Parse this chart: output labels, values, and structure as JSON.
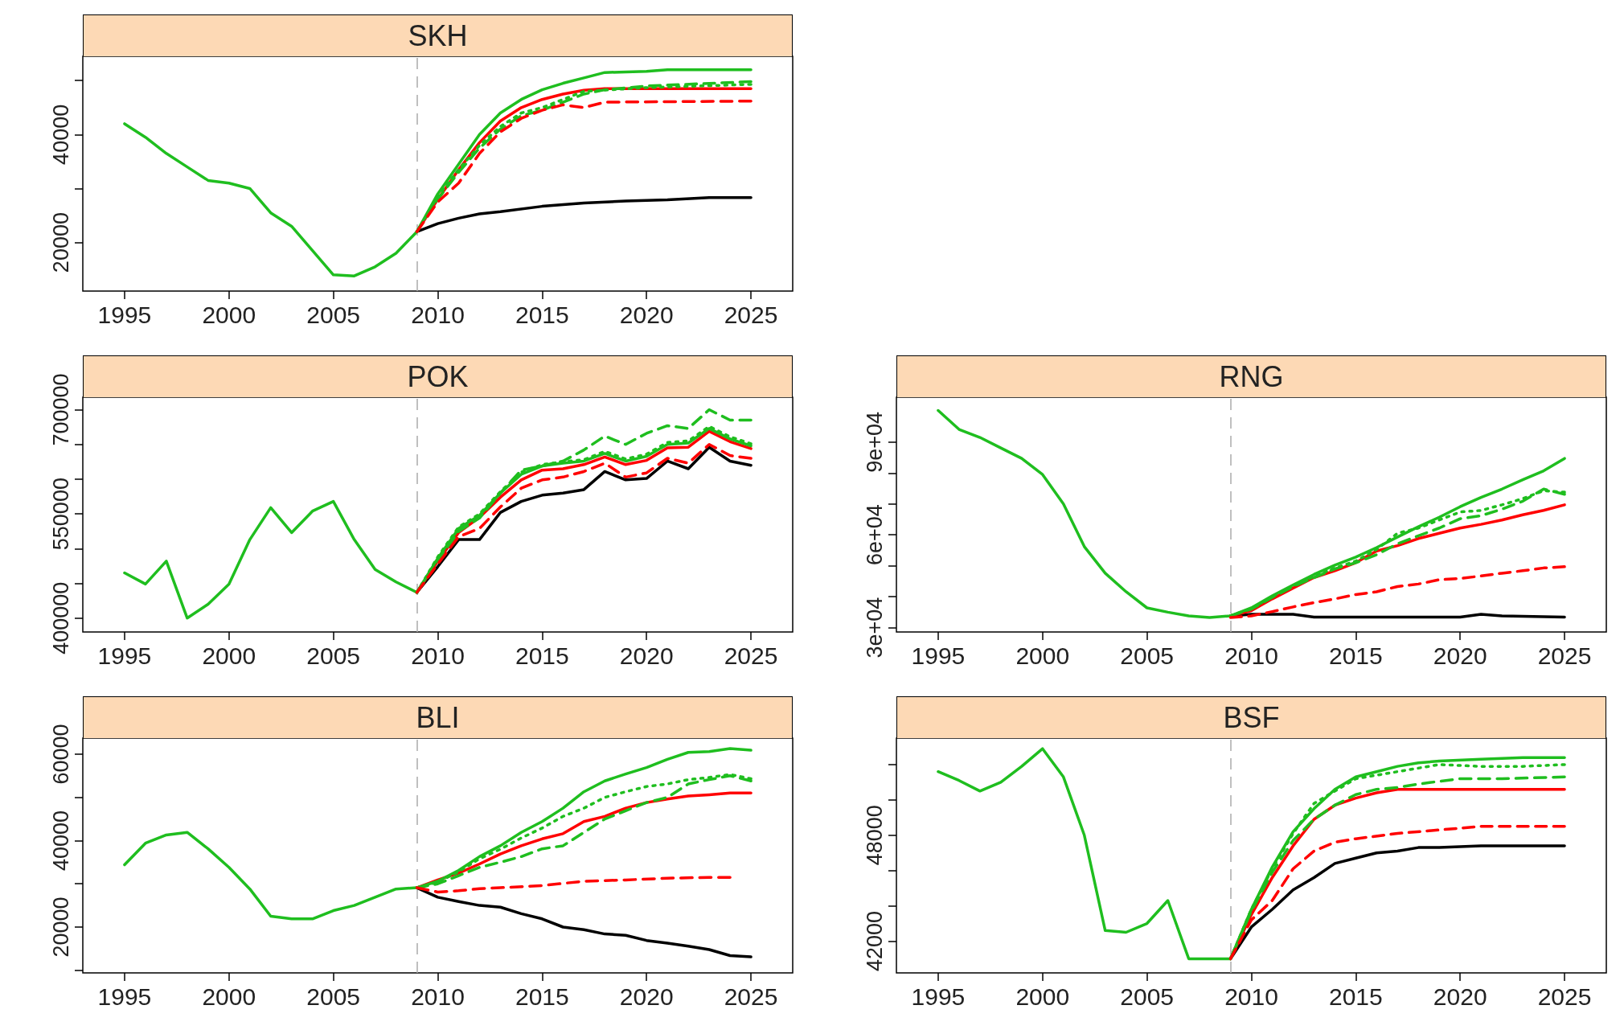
{
  "chart_data": [
    {
      "type": "line",
      "title": "SKH",
      "xlim": [
        1993,
        2027
      ],
      "xticks": [
        1995,
        2000,
        2005,
        2010,
        2015,
        2020,
        2025
      ],
      "ylim": [
        11000,
        54500
      ],
      "yticks": [
        20000,
        {
          "value": 30000,
          "label": null
        },
        40000,
        {
          "value": 50000,
          "label": null
        }
      ],
      "ref_lines": [
        {
          "axis": "x",
          "value": 2009,
          "color": "#aaaaaa",
          "line_style": "dashed"
        }
      ],
      "series": [
        {
          "color": "#000000",
          "line_style": "solid",
          "x": [
            2009,
            2010,
            2011,
            2012,
            2013,
            2015,
            2017,
            2019,
            2021,
            2023,
            2025
          ],
          "values": [
            22000,
            23500,
            24500,
            25300,
            25700,
            26700,
            27300,
            27700,
            27900,
            28300,
            28300
          ]
        },
        {
          "color": "#ff0000",
          "line_style": "dashed",
          "x": [
            2009,
            2010,
            2011,
            2012,
            2013,
            2014,
            2015,
            2016,
            2017,
            2018,
            2025
          ],
          "values": [
            22000,
            27500,
            31000,
            36500,
            40500,
            43000,
            44500,
            45500,
            45000,
            46000,
            46200
          ]
        },
        {
          "color": "#ff0000",
          "line_style": "solid",
          "x": [
            2009,
            2010,
            2011,
            2012,
            2013,
            2014,
            2015,
            2016,
            2017,
            2018,
            2025
          ],
          "values": [
            22000,
            28000,
            33500,
            38500,
            42500,
            45000,
            46500,
            47500,
            48200,
            48500,
            48500
          ]
        },
        {
          "color": "#1fbe1f",
          "line_style": "dashed",
          "x": [
            2009,
            2010,
            2011,
            2012,
            2013,
            2014,
            2015,
            2016,
            2017,
            2018,
            2020,
            2025
          ],
          "values": [
            22000,
            28000,
            33000,
            37500,
            41000,
            43500,
            44500,
            46000,
            47500,
            48300,
            49000,
            49800
          ]
        },
        {
          "color": "#1fbe1f",
          "line_style": "dotted",
          "x": [
            2009,
            2010,
            2011,
            2012,
            2013,
            2014,
            2015,
            2017,
            2020,
            2025
          ],
          "values": [
            22000,
            28500,
            33500,
            38000,
            41500,
            44000,
            45000,
            48000,
            48700,
            49300
          ]
        },
        {
          "color": "#1fbe1f",
          "line_style": "solid",
          "x": [
            1995,
            1996,
            1997,
            1998,
            1999,
            2000,
            2001,
            2002,
            2003,
            2004,
            2005,
            2006,
            2007,
            2008,
            2009,
            2010,
            2011,
            2012,
            2013,
            2014,
            2015,
            2016,
            2017,
            2018,
            2020,
            2021,
            2025
          ],
          "values": [
            42000,
            39500,
            36500,
            34000,
            31500,
            31000,
            30000,
            25500,
            23000,
            18500,
            14000,
            13800,
            15500,
            18000,
            22000,
            29000,
            34500,
            40000,
            44000,
            46500,
            48300,
            49500,
            50500,
            51500,
            51700,
            52000,
            52000
          ]
        }
      ]
    },
    {
      "type": "line",
      "title": "POK",
      "xlim": [
        1993,
        2027
      ],
      "xticks": [
        1995,
        2000,
        2005,
        2010,
        2015,
        2020,
        2025
      ],
      "ylim": [
        380000,
        718000
      ],
      "yticks": [
        400000,
        {
          "value": 450000,
          "label": null
        },
        {
          "value": 500000,
          "label": null
        },
        550000,
        {
          "value": 600000,
          "label": null
        },
        {
          "value": 650000,
          "label": null
        },
        700000
      ],
      "ref_lines": [
        {
          "axis": "x",
          "value": 2009,
          "color": "#aaaaaa",
          "line_style": "dashed"
        }
      ],
      "series": [
        {
          "color": "#000000",
          "line_style": "solid",
          "x": [
            2009,
            2010,
            2011,
            2012,
            2013,
            2014,
            2015,
            2016,
            2017,
            2018,
            2019,
            2020,
            2021,
            2022,
            2023,
            2024,
            2025
          ],
          "values": [
            437000,
            474000,
            513000,
            513000,
            552000,
            568000,
            577000,
            580000,
            585000,
            611000,
            599000,
            601000,
            626000,
            615000,
            646000,
            626000,
            620000
          ]
        },
        {
          "color": "#ff0000",
          "line_style": "dashed",
          "x": [
            2009,
            2010,
            2011,
            2012,
            2013,
            2014,
            2015,
            2016,
            2017,
            2018,
            2019,
            2020,
            2021,
            2022,
            2023,
            2024,
            2025
          ],
          "values": [
            437000,
            478000,
            517000,
            529000,
            560000,
            587000,
            599000,
            603000,
            611000,
            623000,
            603000,
            609000,
            630000,
            623000,
            650000,
            634000,
            630000
          ]
        },
        {
          "color": "#ff0000",
          "line_style": "solid",
          "x": [
            2009,
            2010,
            2011,
            2012,
            2013,
            2014,
            2015,
            2016,
            2017,
            2018,
            2019,
            2020,
            2021,
            2022,
            2023,
            2024,
            2025
          ],
          "values": [
            437000,
            482000,
            523000,
            545000,
            574000,
            599000,
            613000,
            615000,
            621000,
            632000,
            621000,
            627000,
            645000,
            646000,
            669000,
            654000,
            644000
          ]
        },
        {
          "color": "#1fbe1f",
          "line_style": "dashed",
          "x": [
            2009,
            2010,
            2011,
            2012,
            2013,
            2014,
            2015,
            2016,
            2017,
            2018,
            2019,
            2020,
            2021,
            2022,
            2023,
            2024,
            2025
          ],
          "values": [
            437000,
            482000,
            525000,
            544000,
            580000,
            613000,
            619000,
            626000,
            642000,
            662000,
            650000,
            666000,
            677000,
            673000,
            700000,
            685000,
            685000
          ]
        },
        {
          "color": "#1fbe1f",
          "line_style": "dotted",
          "x": [
            2009,
            2010,
            2011,
            2012,
            2013,
            2014,
            2015,
            2016,
            2017,
            2018,
            2019,
            2020,
            2021,
            2022,
            2023,
            2024,
            2025
          ],
          "values": [
            437000,
            488000,
            531000,
            550000,
            582000,
            610000,
            621000,
            625000,
            628000,
            640000,
            629000,
            636000,
            653000,
            655000,
            676000,
            661000,
            651000
          ]
        },
        {
          "color": "#1fbe1f",
          "line_style": "solid",
          "x": [
            1995,
            1996,
            1997,
            1998,
            1999,
            2000,
            2001,
            2002,
            2003,
            2004,
            2005,
            2006,
            2007,
            2008,
            2009,
            2010,
            2011,
            2012,
            2013,
            2014,
            2015,
            2016,
            2017,
            2018,
            2019,
            2020,
            2021,
            2022,
            2023,
            2024,
            2025
          ],
          "values": [
            465000,
            449000,
            482000,
            400000,
            420000,
            449000,
            513000,
            559000,
            523000,
            554000,
            568000,
            513000,
            470000,
            452000,
            437000,
            486000,
            529000,
            548000,
            580000,
            607000,
            619000,
            623000,
            626000,
            637000,
            626000,
            633000,
            650000,
            652000,
            673000,
            658000,
            648000
          ]
        }
      ]
    },
    {
      "type": "line",
      "title": "RNG",
      "xlim": [
        1993,
        2027
      ],
      "xticks": [
        1995,
        2000,
        2005,
        2010,
        2015,
        2020,
        2025
      ],
      "ylim": [
        28600,
        104500
      ],
      "yticks": [
        {
          "value": 30000,
          "label": "3e+04"
        },
        {
          "value": 40000,
          "label": null
        },
        {
          "value": 50000,
          "label": null
        },
        {
          "value": 60000,
          "label": "6e+04"
        },
        {
          "value": 70000,
          "label": null
        },
        {
          "value": 80000,
          "label": null
        },
        {
          "value": 90000,
          "label": "9e+04"
        }
      ],
      "ref_lines": [
        {
          "axis": "x",
          "value": 2009,
          "color": "#aaaaaa",
          "line_style": "dashed"
        }
      ],
      "series": [
        {
          "color": "#000000",
          "line_style": "solid",
          "x": [
            2009,
            2010,
            2012,
            2013,
            2020,
            2021,
            2022,
            2025
          ],
          "values": [
            33800,
            34300,
            34300,
            33400,
            33400,
            34300,
            33800,
            33400
          ]
        },
        {
          "color": "#ff0000",
          "line_style": "dashed",
          "x": [
            2009,
            2010,
            2011,
            2012,
            2013,
            2014,
            2015,
            2016,
            2017,
            2018,
            2019,
            2020,
            2021,
            2022,
            2023,
            2024,
            2025
          ],
          "values": [
            33300,
            33800,
            35200,
            36700,
            38100,
            39300,
            40700,
            41600,
            43300,
            44100,
            45500,
            45900,
            46700,
            47600,
            48400,
            49300,
            49700
          ]
        },
        {
          "color": "#ff0000",
          "line_style": "solid",
          "x": [
            2009,
            2010,
            2011,
            2012,
            2013,
            2014,
            2015,
            2016,
            2017,
            2018,
            2019,
            2020,
            2021,
            2022,
            2023,
            2024,
            2025
          ],
          "values": [
            33800,
            35500,
            39300,
            42800,
            46200,
            48400,
            51000,
            54800,
            56500,
            58800,
            60500,
            62200,
            63400,
            64800,
            66500,
            67900,
            69700
          ]
        },
        {
          "color": "#1fbe1f",
          "line_style": "dashed",
          "x": [
            2009,
            2010,
            2011,
            2012,
            2013,
            2014,
            2015,
            2016,
            2017,
            2018,
            2019,
            2020,
            2021,
            2022,
            2023,
            2024,
            2025
          ],
          "values": [
            33800,
            36000,
            39800,
            43300,
            46200,
            49000,
            51000,
            53600,
            57100,
            59700,
            62200,
            65200,
            66200,
            68300,
            70900,
            74800,
            73100
          ]
        },
        {
          "color": "#1fbe1f",
          "line_style": "dotted",
          "x": [
            2009,
            2010,
            2011,
            2012,
            2013,
            2014,
            2015,
            2016,
            2017,
            2018,
            2019,
            2020,
            2021,
            2022,
            2023,
            2024,
            2025
          ],
          "values": [
            33800,
            36200,
            40000,
            43500,
            46500,
            49300,
            51500,
            55300,
            60500,
            62200,
            64800,
            67400,
            67900,
            69700,
            71700,
            74300,
            73800
          ]
        },
        {
          "color": "#1fbe1f",
          "line_style": "solid",
          "x": [
            1995,
            1996,
            1997,
            1998,
            1999,
            2000,
            2001,
            2002,
            2003,
            2004,
            2005,
            2006,
            2007,
            2008,
            2009,
            2010,
            2011,
            2012,
            2013,
            2014,
            2015,
            2016,
            2017,
            2018,
            2019,
            2020,
            2021,
            2022,
            2023,
            2024,
            2025
          ],
          "values": [
            100200,
            94100,
            91500,
            88100,
            84700,
            79500,
            70000,
            56200,
            47600,
            41600,
            36400,
            35000,
            33800,
            33300,
            33800,
            36400,
            40300,
            43800,
            47200,
            50200,
            52800,
            55900,
            59300,
            62600,
            65700,
            69100,
            72100,
            74800,
            77800,
            80700,
            84700
          ]
        }
      ]
    },
    {
      "type": "line",
      "title": "BLI",
      "xlim": [
        1993,
        2027
      ],
      "xticks": [
        1995,
        2000,
        2005,
        2010,
        2015,
        2020,
        2025
      ],
      "ylim": [
        9400,
        63700
      ],
      "yticks": [
        {
          "value": 10000,
          "label": null
        },
        20000,
        {
          "value": 30000,
          "label": null
        },
        40000,
        {
          "value": 50000,
          "label": null
        },
        60000
      ],
      "ref_lines": [
        {
          "axis": "x",
          "value": 2009,
          "color": "#aaaaaa",
          "line_style": "dashed"
        }
      ],
      "series": [
        {
          "color": "#000000",
          "line_style": "solid",
          "x": [
            2009,
            2010,
            2011,
            2012,
            2013,
            2014,
            2015,
            2016,
            2017,
            2018,
            2019,
            2020,
            2021,
            2022,
            2023,
            2024,
            2025
          ],
          "values": [
            29100,
            26900,
            25900,
            25000,
            24600,
            23100,
            21900,
            20000,
            19400,
            18400,
            18100,
            16900,
            16300,
            15600,
            14800,
            13400,
            13100
          ]
        },
        {
          "color": "#ff0000",
          "line_style": "dashed",
          "x": [
            2009,
            2010,
            2011,
            2012,
            2013,
            2015,
            2017,
            2019,
            2021,
            2023,
            2024
          ],
          "values": [
            29100,
            28100,
            28400,
            28900,
            29100,
            29600,
            30600,
            30900,
            31300,
            31500,
            31500
          ]
        },
        {
          "color": "#ff0000",
          "line_style": "solid",
          "x": [
            2009,
            2010,
            2011,
            2012,
            2013,
            2014,
            2015,
            2016,
            2017,
            2018,
            2019,
            2020,
            2021,
            2022,
            2023,
            2024,
            2025
          ],
          "values": [
            29100,
            30900,
            32500,
            34600,
            36900,
            38800,
            40400,
            41600,
            44400,
            45600,
            47500,
            48800,
            49600,
            50300,
            50600,
            51000,
            51000
          ]
        },
        {
          "color": "#1fbe1f",
          "line_style": "dashed",
          "x": [
            2009,
            2010,
            2011,
            2012,
            2013,
            2014,
            2015,
            2016,
            2017,
            2018,
            2019,
            2020,
            2021,
            2022,
            2023,
            2024,
            2025
          ],
          "values": [
            29100,
            30000,
            31900,
            33800,
            35000,
            36300,
            38100,
            38800,
            41900,
            45000,
            46900,
            48800,
            50000,
            53100,
            54100,
            55000,
            53800
          ]
        },
        {
          "color": "#1fbe1f",
          "line_style": "dotted",
          "x": [
            2009,
            2010,
            2011,
            2012,
            2013,
            2014,
            2015,
            2016,
            2017,
            2018,
            2019,
            2020,
            2021,
            2022,
            2023,
            2024,
            2025
          ],
          "values": [
            29100,
            30400,
            32800,
            35800,
            38000,
            40600,
            42900,
            45600,
            47500,
            50000,
            51300,
            52500,
            53100,
            54100,
            54600,
            55300,
            54300
          ]
        },
        {
          "color": "#1fbe1f",
          "line_style": "solid",
          "x": [
            1995,
            1996,
            1997,
            1998,
            1999,
            2000,
            2001,
            2002,
            2003,
            2004,
            2005,
            2006,
            2007,
            2008,
            2009,
            2010,
            2011,
            2012,
            2013,
            2014,
            2015,
            2016,
            2017,
            2018,
            2019,
            2020,
            2021,
            2022,
            2023,
            2024,
            2025
          ],
          "values": [
            34400,
            39400,
            41300,
            41900,
            38100,
            33800,
            28800,
            22500,
            21900,
            21900,
            23800,
            25000,
            26900,
            28800,
            29100,
            30600,
            33100,
            36300,
            38800,
            41900,
            44400,
            47500,
            51300,
            53800,
            55400,
            56900,
            58800,
            60400,
            60600,
            61300,
            60900
          ]
        }
      ]
    },
    {
      "type": "line",
      "title": "BSF",
      "xlim": [
        1993,
        2027
      ],
      "xticks": [
        1995,
        2000,
        2005,
        2010,
        2015,
        2020,
        2025
      ],
      "ylim": [
        40200,
        53500
      ],
      "yticks": [
        42000,
        {
          "value": 44000,
          "label": null
        },
        {
          "value": 46000,
          "label": null
        },
        48000,
        {
          "value": 50000,
          "label": null
        },
        {
          "value": 52000,
          "label": null
        }
      ],
      "ref_lines": [
        {
          "axis": "x",
          "value": 2009,
          "color": "#aaaaaa",
          "line_style": "dashed"
        }
      ],
      "series": [
        {
          "color": "#000000",
          "line_style": "solid",
          "x": [
            2009,
            2010,
            2011,
            2012,
            2013,
            2014,
            2015,
            2016,
            2017,
            2018,
            2019,
            2021,
            2025
          ],
          "values": [
            41000,
            42800,
            43800,
            44900,
            45600,
            46400,
            46700,
            47000,
            47100,
            47300,
            47300,
            47400,
            47400
          ]
        },
        {
          "color": "#ff0000",
          "line_style": "dashed",
          "x": [
            2009,
            2010,
            2011,
            2012,
            2013,
            2014,
            2015,
            2017,
            2019,
            2021,
            2025
          ],
          "values": [
            41000,
            43200,
            44300,
            46100,
            47100,
            47600,
            47800,
            48100,
            48300,
            48500,
            48500
          ]
        },
        {
          "color": "#ff0000",
          "line_style": "solid",
          "x": [
            2009,
            2010,
            2011,
            2012,
            2013,
            2014,
            2015,
            2016,
            2017,
            2018,
            2025
          ],
          "values": [
            41000,
            43500,
            45600,
            47400,
            48900,
            49700,
            50100,
            50400,
            50600,
            50600,
            50600
          ]
        },
        {
          "color": "#1fbe1f",
          "line_style": "dashed",
          "x": [
            2009,
            2010,
            2011,
            2012,
            2013,
            2014,
            2015,
            2016,
            2017,
            2018,
            2020,
            2022,
            2025
          ],
          "values": [
            41000,
            43700,
            45900,
            47700,
            48900,
            49700,
            50300,
            50600,
            50700,
            50900,
            51200,
            51200,
            51300
          ]
        },
        {
          "color": "#1fbe1f",
          "line_style": "dotted",
          "x": [
            2009,
            2010,
            2011,
            2012,
            2013,
            2015,
            2017,
            2019,
            2021,
            2023,
            2025
          ],
          "values": [
            41000,
            43800,
            46100,
            48100,
            49800,
            51200,
            51600,
            52000,
            51900,
            51900,
            52000
          ]
        },
        {
          "color": "#1fbe1f",
          "line_style": "solid",
          "x": [
            1995,
            1996,
            1997,
            1998,
            1999,
            2000,
            2001,
            2002,
            2003,
            2004,
            2005,
            2006,
            2007,
            2008,
            2009,
            2010,
            2011,
            2012,
            2013,
            2014,
            2015,
            2016,
            2017,
            2018,
            2019,
            2021,
            2023,
            2025
          ],
          "values": [
            51600,
            51100,
            50500,
            51000,
            51900,
            52900,
            51300,
            48000,
            42600,
            42500,
            43000,
            44300,
            41000,
            41000,
            41000,
            43800,
            46200,
            48200,
            49500,
            50600,
            51300,
            51600,
            51900,
            52100,
            52200,
            52300,
            52400,
            52400
          ]
        }
      ]
    }
  ]
}
